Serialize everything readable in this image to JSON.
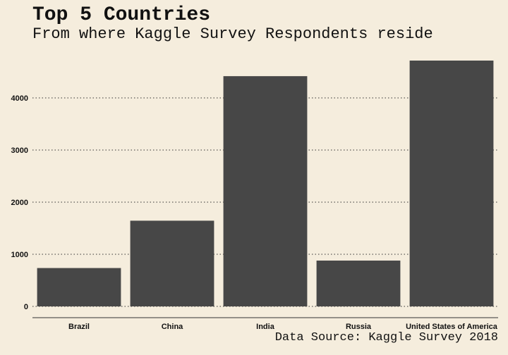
{
  "chart_data": {
    "type": "bar",
    "title": "Top 5 Countries",
    "subtitle": "From where Kaggle Survey Respondents reside",
    "caption": "Data Source: Kaggle Survey 2018",
    "categories": [
      "Brazil",
      "China",
      "India",
      "Russia",
      "United States of America"
    ],
    "values": [
      736,
      1644,
      4417,
      879,
      4716
    ],
    "xlabel": "",
    "ylabel": "",
    "ylim": [
      0,
      4716
    ],
    "yticks": [
      0,
      1000,
      2000,
      3000,
      4000
    ],
    "grid": "horizontal dotted",
    "legend": "none",
    "colors": {
      "background": "#f5eddd",
      "bar": "#474747",
      "grid": "#333333"
    }
  }
}
